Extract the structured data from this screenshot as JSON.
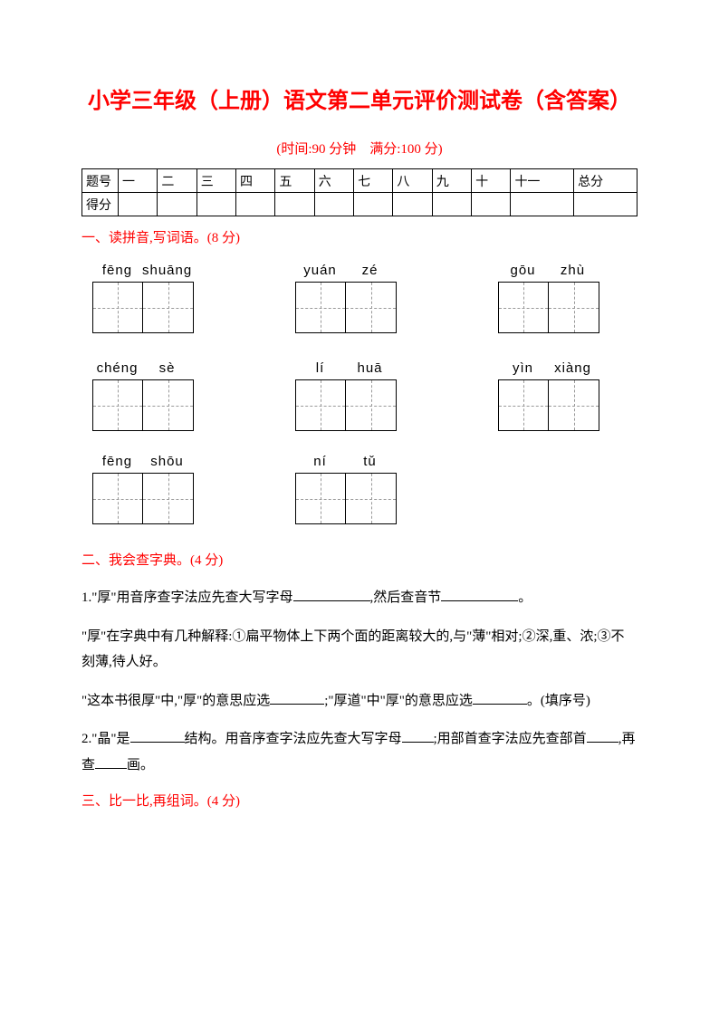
{
  "title": "小学三年级（上册）语文第二单元评价测试卷（含答案）",
  "subtitle": "(时间:90 分钟　满分:100 分)",
  "scoreTable": {
    "row1Label": "题号",
    "cols": [
      "一",
      "二",
      "三",
      "四",
      "五",
      "六",
      "七",
      "八",
      "九",
      "十",
      "十一",
      "总分"
    ],
    "row2Label": "得分"
  },
  "sections": {
    "s1": "一、读拼音,写词语。(8 分)",
    "s2": "二、我会查字典。(4 分)",
    "s3": "三、比一比,再组词。(4 分)"
  },
  "pinyin": [
    {
      "p1": "fēng",
      "p2": "shuāng"
    },
    {
      "p1": "yuán",
      "p2": "zé"
    },
    {
      "p1": "gōu",
      "p2": "zhù"
    },
    {
      "p1": "chéng",
      "p2": "sè"
    },
    {
      "p1": "lí",
      "p2": "huā"
    },
    {
      "p1": "yìn",
      "p2": "xiàng"
    },
    {
      "p1": "fēng",
      "p2": "shōu"
    },
    {
      "p1": "ní",
      "p2": "tǔ"
    }
  ],
  "q1a": "1.\"厚\"用音序查字法应先查大写字母",
  "q1b": ",然后查音节",
  "q1c": "。",
  "q1def": "\"厚\"在字典中有几种解释:①扁平物体上下两个面的距离较大的,与\"薄\"相对;②深,重、浓;③不刻薄,待人好。",
  "q1d": "\"这本书很厚\"中,\"厚\"的意思应选",
  "q1e": ";\"厚道\"中\"厚\"的意思应选",
  "q1f": "。(填序号)",
  "q2a": "2.\"晶\"是",
  "q2b": "结构。用音序查字法应先查大写字母",
  "q2c": ";用部首查字法应先查部首",
  "q2d": ",再查",
  "q2e": "画。",
  "colors": {
    "accent": "#ff0000",
    "text": "#000000",
    "dash": "#999999",
    "bg": "#ffffff"
  }
}
